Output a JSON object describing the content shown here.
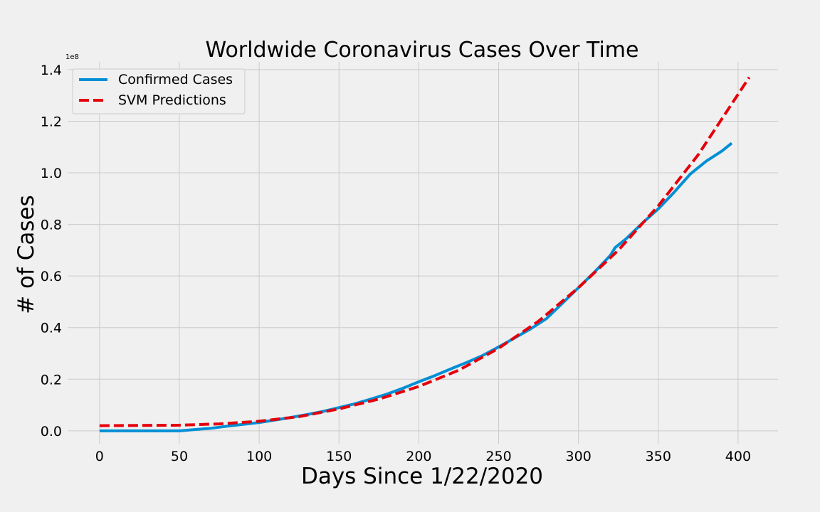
{
  "chart_data": {
    "type": "line",
    "title": "Worldwide Coronavirus Cases Over Time",
    "xlabel": "Days Since 1/22/2020",
    "ylabel": "# of Cases",
    "y_offset_label": "1e8",
    "xlim": [
      -20,
      425
    ],
    "ylim": [
      -0.05,
      1.43
    ],
    "x_ticks": [
      0,
      50,
      100,
      150,
      200,
      250,
      300,
      350,
      400
    ],
    "x_tick_labels": [
      "0",
      "50",
      "100",
      "150",
      "200",
      "250",
      "300",
      "350",
      "400"
    ],
    "y_ticks": [
      0.0,
      0.2,
      0.4,
      0.6,
      0.8,
      1.0,
      1.2,
      1.4
    ],
    "y_tick_labels": [
      "0.0",
      "0.2",
      "0.4",
      "0.6",
      "0.8",
      "1.0",
      "1.2",
      "1.4"
    ],
    "grid": true,
    "legend_position": "top-left",
    "series": [
      {
        "name": "Confirmed Cases",
        "color": "#008fd5",
        "style": "solid",
        "points": [
          [
            0,
            0.0
          ],
          [
            50,
            0.0
          ],
          [
            60,
            0.005
          ],
          [
            70,
            0.01
          ],
          [
            80,
            0.018
          ],
          [
            90,
            0.025
          ],
          [
            100,
            0.032
          ],
          [
            110,
            0.042
          ],
          [
            120,
            0.052
          ],
          [
            130,
            0.063
          ],
          [
            140,
            0.075
          ],
          [
            150,
            0.09
          ],
          [
            160,
            0.105
          ],
          [
            170,
            0.123
          ],
          [
            180,
            0.142
          ],
          [
            190,
            0.165
          ],
          [
            200,
            0.19
          ],
          [
            210,
            0.214
          ],
          [
            220,
            0.24
          ],
          [
            230,
            0.265
          ],
          [
            240,
            0.292
          ],
          [
            250,
            0.325
          ],
          [
            260,
            0.36
          ],
          [
            270,
            0.395
          ],
          [
            280,
            0.435
          ],
          [
            290,
            0.495
          ],
          [
            300,
            0.555
          ],
          [
            310,
            0.615
          ],
          [
            320,
            0.68
          ],
          [
            323,
            0.71
          ],
          [
            330,
            0.745
          ],
          [
            340,
            0.805
          ],
          [
            350,
            0.86
          ],
          [
            360,
            0.925
          ],
          [
            370,
            0.995
          ],
          [
            380,
            1.045
          ],
          [
            390,
            1.085
          ],
          [
            396,
            1.115
          ]
        ]
      },
      {
        "name": "SVM Predictions",
        "color": "#e5000b",
        "style": "dashed",
        "points": [
          [
            0,
            0.02
          ],
          [
            50,
            0.022
          ],
          [
            75,
            0.027
          ],
          [
            100,
            0.037
          ],
          [
            125,
            0.055
          ],
          [
            150,
            0.085
          ],
          [
            175,
            0.123
          ],
          [
            200,
            0.172
          ],
          [
            225,
            0.235
          ],
          [
            250,
            0.32
          ],
          [
            275,
            0.425
          ],
          [
            300,
            0.555
          ],
          [
            325,
            0.7
          ],
          [
            350,
            0.872
          ],
          [
            375,
            1.07
          ],
          [
            407,
            1.37
          ]
        ]
      }
    ]
  }
}
